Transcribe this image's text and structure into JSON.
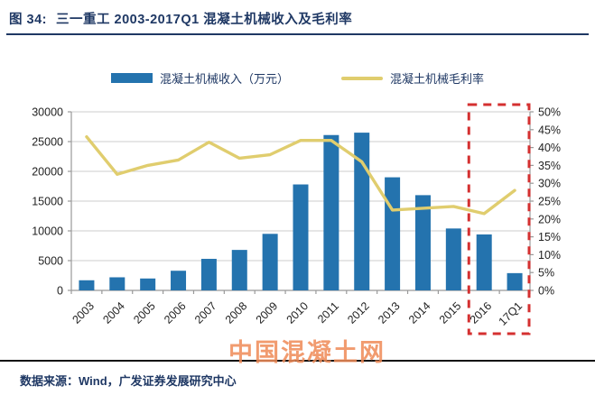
{
  "header": {
    "figure_label": "图 34:",
    "title": "三一重工 2003-2017Q1 混凝土机械收入及毛利率"
  },
  "legend": {
    "bar_label": "混凝土机械收入（万元）",
    "line_label": "混凝土机械毛利率"
  },
  "chart_data": {
    "type": "combo",
    "categories": [
      "2003",
      "2004",
      "2005",
      "2006",
      "2007",
      "2008",
      "2009",
      "2010",
      "2011",
      "2012",
      "2013",
      "2014",
      "2015",
      "2016",
      "17Q1"
    ],
    "series": [
      {
        "name": "混凝土机械收入（万元）",
        "type": "bar",
        "axis": "left",
        "values": [
          1700,
          2200,
          2000,
          3300,
          5300,
          6800,
          9500,
          17800,
          26100,
          26500,
          19000,
          16000,
          10400,
          9400,
          2900
        ]
      },
      {
        "name": "混凝土机械毛利率",
        "type": "line",
        "axis": "right",
        "values": [
          43,
          32.5,
          35,
          36.5,
          41.5,
          37,
          38,
          42,
          42,
          36,
          22.5,
          23,
          23.5,
          21.5,
          28
        ]
      }
    ],
    "left_axis": {
      "min": 0,
      "max": 30000,
      "step": 5000,
      "tick_labels": [
        "0",
        "5000",
        "10000",
        "15000",
        "20000",
        "25000",
        "30000"
      ]
    },
    "right_axis": {
      "min": 0,
      "max": 50,
      "step": 5,
      "unit": "%",
      "tick_labels": [
        "0%",
        "5%",
        "10%",
        "15%",
        "20%",
        "25%",
        "30%",
        "35%",
        "40%",
        "45%",
        "50%"
      ]
    },
    "grid": true,
    "legend_position": "top",
    "highlight": {
      "type": "dashed-box",
      "categories": [
        "2016",
        "17Q1"
      ],
      "color": "#d43030"
    }
  },
  "watermark": {
    "text": "中国混凝土网"
  },
  "footer": {
    "source": "数据来源：Wind，广发证券发展研究中心"
  },
  "colors": {
    "bar": "#2473ae",
    "line": "#e0cd6e",
    "title": "#1f3864",
    "highlight": "#d43030",
    "watermark": "#ef8a57",
    "grid": "#cccccc",
    "axis_line": "#999999",
    "axis_text": "#222222"
  }
}
